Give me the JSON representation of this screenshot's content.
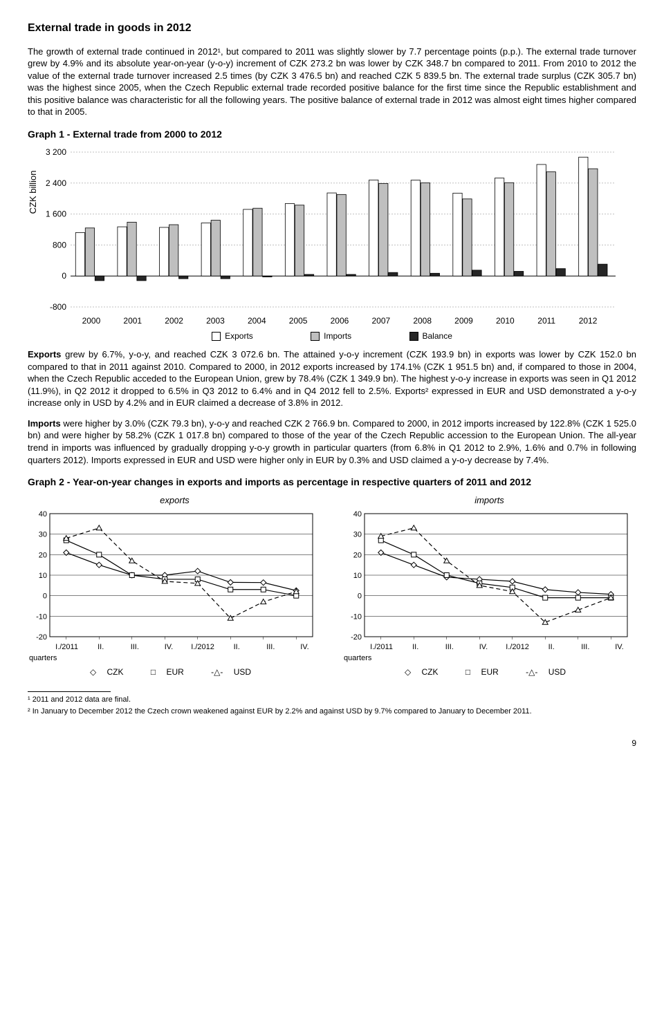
{
  "title": "External trade in goods in 2012",
  "para1": "The growth of external trade continued in 2012¹, but compared to 2011 was slightly slower by 7.7 percentage points (p.p.). The external trade turnover grew by 4.9% and its absolute year-on-year (y-o-y) increment of CZK 273.2 bn was lower by CZK 348.7 bn compared to 2011. From 2010 to 2012 the value of the external trade turnover increased 2.5 times (by CZK 3 476.5 bn) and reached CZK 5 839.5 bn. The external trade surplus (CZK 305.7 bn) was the highest since 2005, when the Czech Republic external trade recorded positive balance for the first time since the Republic establishment and this positive balance was characteristic for all the following years. The positive balance of external trade in 2012 was almost eight times higher compared to that in 2005.",
  "graph1_title": "Graph 1 - External trade from 2000 to 2012",
  "chart1": {
    "y_label": "CZK billion",
    "y_ticks": [
      -800,
      0,
      800,
      1600,
      2400,
      3200
    ],
    "years": [
      "2000",
      "2001",
      "2002",
      "2003",
      "2004",
      "2005",
      "2006",
      "2007",
      "2008",
      "2009",
      "2010",
      "2011",
      "2012"
    ],
    "exports": [
      1120,
      1270,
      1255,
      1370,
      1720,
      1870,
      2145,
      2480,
      2475,
      2140,
      2530,
      2880,
      3070
    ],
    "imports": [
      1240,
      1390,
      1325,
      1440,
      1750,
      1830,
      2105,
      2390,
      2405,
      1990,
      2410,
      2690,
      2770
    ],
    "balance": [
      -120,
      -120,
      -70,
      -70,
      -25,
      40,
      40,
      90,
      70,
      150,
      120,
      190,
      305
    ],
    "colors": {
      "exports": "#ffffff",
      "imports": "#bfbfbf",
      "balance": "#262626",
      "border": "#000000",
      "grid": "#cccccc"
    }
  },
  "legend1": {
    "exports": "Exports",
    "imports": "Imports",
    "balance": "Balance"
  },
  "para2_a": "Exports",
  "para2": " grew by 6.7%, y-o-y, and reached CZK 3 072.6 bn. The attained y-o-y increment (CZK 193.9 bn) in exports was lower by CZK 152.0 bn compared to that in 2011 against 2010. Compared to 2000, in 2012 exports increased by 174.1% (CZK 1 951.5 bn) and, if compared to those in 2004, when the Czech Republic acceded to the European Union, grew by 78.4% (CZK 1 349.9 bn). The highest y-o-y increase in exports was seen in Q1 2012 (11.9%), in Q2 2012 it dropped to 6.5% in Q3 2012 to 6.4%  and in Q4 2012 fell to 2.5%. Exports² expressed in EUR and USD demonstrated a y-o-y increase only in USD by 4.2% and in EUR claimed a decrease of 3.8% in 2012.",
  "para3_a": "Imports",
  "para3": " were higher by 3.0% (CZK 79.3 bn), y-o-y and reached CZK 2 766.9 bn. Compared to 2000, in 2012 imports increased by 122.8% (CZK 1 525.0 bn) and were higher by 58.2% (CZK 1 017.8 bn) compared to those of the year of the Czech Republic accession to the European Union. The all-year trend in imports was influenced by gradually dropping y-o-y growth in particular quarters (from 6.8% in Q1 2012 to 2.9%, 1.6% and 0.7% in following quarters 2012). Imports expressed in EUR and USD were higher only in EUR by 0.3% and USD claimed a y-o-y decrease by 7.4%.",
  "graph2_title": "Graph 2 - Year-on-year changes in exports and imports as percentage in respective quarters of 2011 and 2012",
  "chart2": {
    "sub_exports": "exports",
    "sub_imports": "imports",
    "y_ticks": [
      -20,
      -10,
      0,
      10,
      20,
      30,
      40
    ],
    "x_labels": [
      "I./2011",
      "II.",
      "III.",
      "IV.",
      "I./2012",
      "II.",
      "III.",
      "IV."
    ],
    "quarters_label": "quarters",
    "exports": {
      "czk": [
        21,
        15,
        10,
        10,
        12,
        6.5,
        6.4,
        2.5
      ],
      "eur": [
        27,
        20,
        10,
        8,
        8,
        3,
        3,
        0
      ],
      "usd": [
        28,
        33,
        17,
        7,
        6,
        -11,
        -3,
        2
      ]
    },
    "imports": {
      "czk": [
        21,
        15,
        9,
        8,
        7,
        3,
        1.6,
        0.7
      ],
      "eur": [
        27,
        20,
        10,
        6,
        4,
        -1,
        -1,
        -1
      ],
      "usd": [
        29,
        33,
        17,
        5,
        2,
        -13,
        -7,
        -1
      ]
    },
    "colors": {
      "line": "#000000",
      "bg": "#ffffff"
    }
  },
  "line_legend": {
    "czk": "CZK",
    "eur": "EUR",
    "usd": "USD"
  },
  "fn1": "¹ 2011 and 2012 data are final.",
  "fn2": "² In January to December 2012 the Czech crown weakened against EUR by 2.2% and against USD by 9.7% compared to January to December 2011.",
  "pagenum": "9"
}
